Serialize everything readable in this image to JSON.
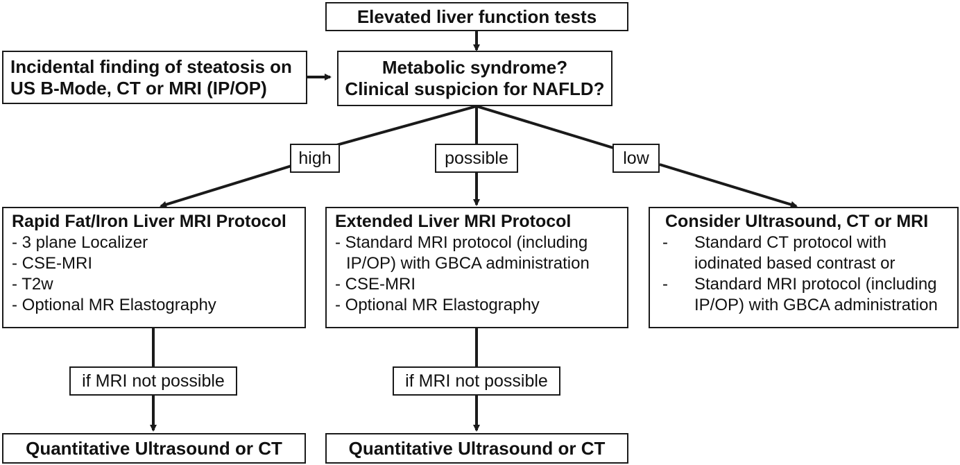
{
  "start": "Elevated liver function tests",
  "incidental": [
    "Incidental finding of steatosis on",
    "US B-Mode, CT or MRI (IP/OP)"
  ],
  "question": [
    "Metabolic syndrome?",
    "Clinical suspicion for NAFLD?"
  ],
  "branches": {
    "high": "high",
    "possible": "possible",
    "low": "low"
  },
  "rapid": {
    "title": "Rapid Fat/Iron Liver MRI Protocol",
    "items": [
      "- 3 plane Localizer",
      "- CSE-MRI",
      "- T2w",
      "- Optional MR Elastography"
    ]
  },
  "extended": {
    "title": "Extended Liver MRI Protocol",
    "item1": [
      "- Standard MRI protocol (including",
      "IP/OP) with GBCA administration"
    ],
    "item2": "- CSE-MRI",
    "item3": "- Optional MR Elastography"
  },
  "consider": {
    "title": "Consider Ultrasound, CT or MRI",
    "dash": "-",
    "item1": [
      "Standard CT protocol with",
      "iodinated based contrast or"
    ],
    "item2": [
      "Standard MRI protocol (including",
      "IP/OP) with GBCA administration"
    ]
  },
  "fallback_label": "if MRI not possible",
  "fallback_result": "Quantitative Ultrasound or CT"
}
